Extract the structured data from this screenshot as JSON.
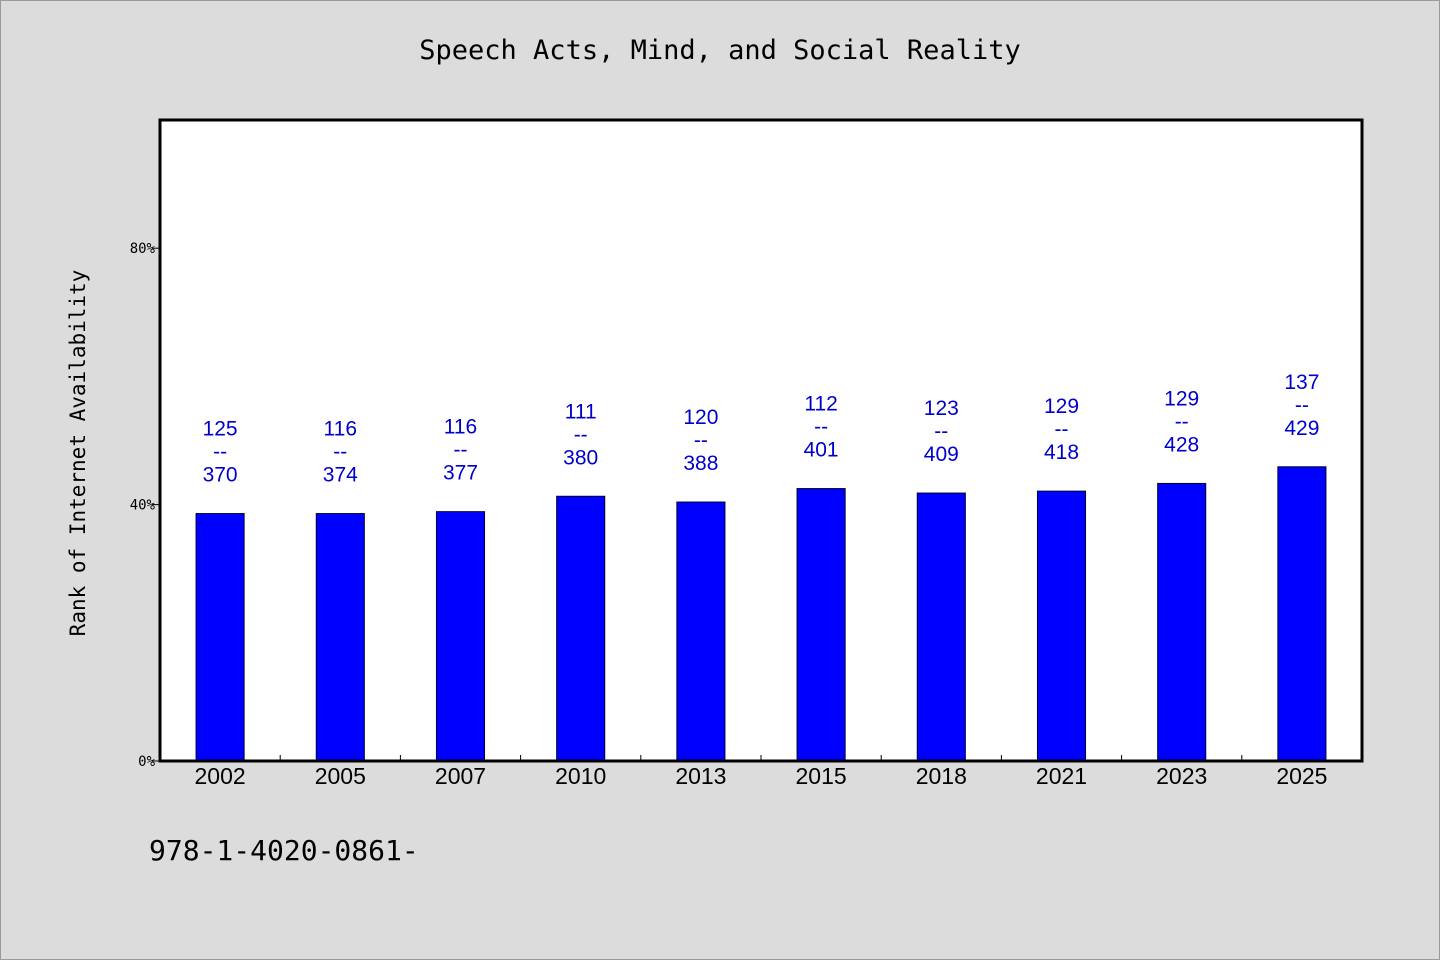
{
  "chart_data": {
    "type": "bar",
    "title": "Speech Acts, Mind, and Social Reality",
    "xlabel": "",
    "ylabel": "Rank of Internet Availability",
    "ylim": [
      0,
      100
    ],
    "yticks": [
      0,
      40,
      80
    ],
    "ytick_labels": [
      "0%",
      "40%",
      "80%"
    ],
    "grid": false,
    "categories": [
      "2002",
      "2005",
      "2007",
      "2010",
      "2013",
      "2015",
      "2018",
      "2021",
      "2023",
      "2025"
    ],
    "values": [
      38.6,
      38.6,
      38.9,
      41.3,
      40.4,
      42.5,
      41.8,
      42.1,
      43.3,
      45.9
    ],
    "data_labels": [
      {
        "top": "125",
        "mid": "--",
        "bottom": "370"
      },
      {
        "top": "116",
        "mid": "--",
        "bottom": "374"
      },
      {
        "top": "116",
        "mid": "--",
        "bottom": "377"
      },
      {
        "top": "111",
        "mid": "--",
        "bottom": "380"
      },
      {
        "top": "120",
        "mid": "--",
        "bottom": "388"
      },
      {
        "top": "112",
        "mid": "--",
        "bottom": "401"
      },
      {
        "top": "123",
        "mid": "--",
        "bottom": "409"
      },
      {
        "top": "129",
        "mid": "--",
        "bottom": "418"
      },
      {
        "top": "129",
        "mid": "--",
        "bottom": "428"
      },
      {
        "top": "137",
        "mid": "--",
        "bottom": "429"
      }
    ],
    "colors": {
      "bar": "#0000ff",
      "label": "#0000cc",
      "background": "#dcdcdc",
      "plot_background": "#ffffff"
    }
  },
  "footer": {
    "code": "978-1-4020-0861-"
  }
}
